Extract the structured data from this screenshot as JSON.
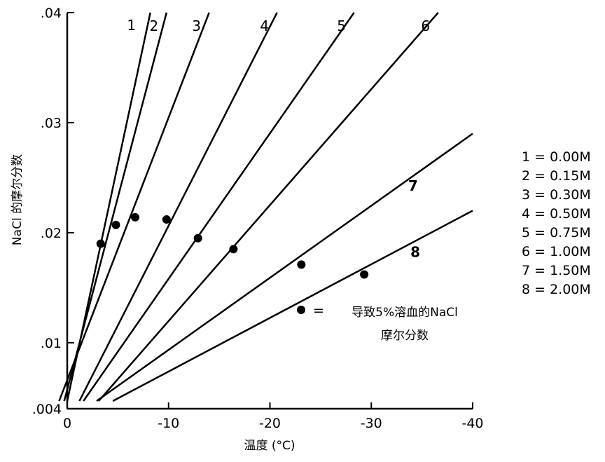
{
  "chart_data": {
    "type": "line",
    "title": "",
    "xlabel": "温度 (°C)",
    "ylabel": "NaCl 的摩尔分数",
    "xlim": [
      0,
      -40
    ],
    "ylim": [
      0.004,
      0.04
    ],
    "grid": false,
    "x_ticks": [
      {
        "value": 0,
        "label": "0"
      },
      {
        "value": -10,
        "label": "-10"
      },
      {
        "value": -20,
        "label": "-20"
      },
      {
        "value": -30,
        "label": "-30"
      },
      {
        "value": -40,
        "label": "-40"
      }
    ],
    "y_ticks": [
      {
        "value": 0.004,
        "label": ".004"
      },
      {
        "value": 0.01,
        "label": ".01"
      },
      {
        "value": 0.02,
        "label": ".02"
      },
      {
        "value": 0.03,
        "label": ".03"
      },
      {
        "value": 0.04,
        "label": ".04"
      }
    ],
    "series": [
      {
        "name": "1",
        "label_bold": false,
        "x": [
          0,
          -8.2
        ],
        "y": [
          0.0047,
          0.04
        ],
        "marker": {
          "x": -3.3,
          "y": 0.019
        }
      },
      {
        "name": "2",
        "label_bold": false,
        "x": [
          0.3,
          -9.8
        ],
        "y": [
          0.0047,
          0.04
        ],
        "marker": {
          "x": -4.8,
          "y": 0.0207
        }
      },
      {
        "name": "3",
        "label_bold": false,
        "x": [
          0.8,
          -14.0
        ],
        "y": [
          0.0047,
          0.04
        ],
        "marker": {
          "x": -6.7,
          "y": 0.0214
        }
      },
      {
        "name": "4",
        "label_bold": false,
        "x": [
          -1.2,
          -20.7
        ],
        "y": [
          0.0047,
          0.04
        ],
        "marker": {
          "x": -9.8,
          "y": 0.0212
        }
      },
      {
        "name": "5",
        "label_bold": false,
        "x": [
          -1.6,
          -28.3
        ],
        "y": [
          0.0047,
          0.04
        ],
        "marker": {
          "x": -12.9,
          "y": 0.0195
        }
      },
      {
        "name": "6",
        "label_bold": false,
        "x": [
          -3.1,
          -36.6
        ],
        "y": [
          0.0047,
          0.04
        ],
        "marker": {
          "x": -16.4,
          "y": 0.0185
        }
      },
      {
        "name": "7",
        "label_bold": true,
        "x": [
          -2.9,
          -40.0
        ],
        "y": [
          0.0047,
          0.029
        ],
        "marker": {
          "x": -23.1,
          "y": 0.0171
        }
      },
      {
        "name": "8",
        "label_bold": true,
        "x": [
          -4.5,
          -40.0
        ],
        "y": [
          0.0047,
          0.022
        ],
        "marker": {
          "x": -29.3,
          "y": 0.0162
        }
      }
    ],
    "legend": {
      "placement": "right",
      "entries": [
        "1 = 0.00M",
        "2 = 0.15M",
        "3 = 0.30M",
        "4 = 0.50M",
        "5 = 0.75M",
        "6 = 1.00M",
        "7 = 1.50M",
        "8 = 2.00M"
      ]
    },
    "annotation": {
      "symbol": "=",
      "lines": [
        "导致5%溶血的NaCl",
        "摩尔分数"
      ]
    }
  }
}
